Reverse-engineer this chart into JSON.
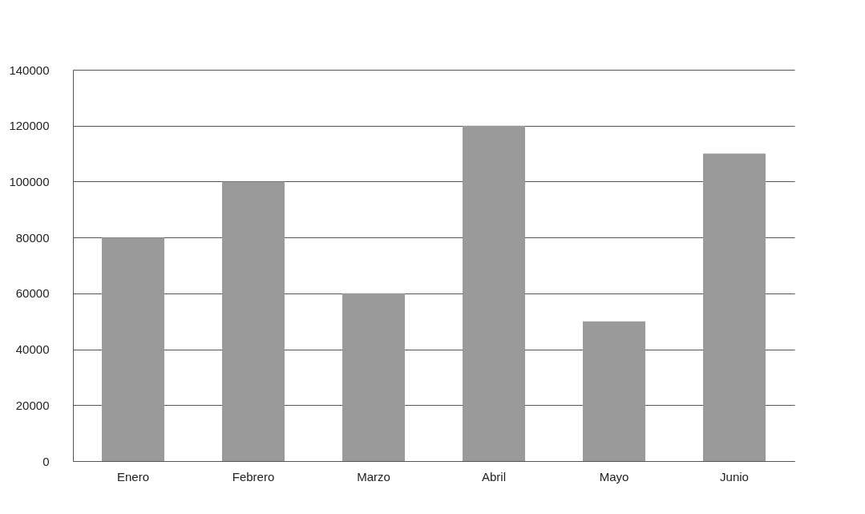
{
  "chart_data": {
    "type": "bar",
    "categories": [
      "Enero",
      "Febrero",
      "Marzo",
      "Abril",
      "Mayo",
      "Junio"
    ],
    "values": [
      80000,
      100000,
      60000,
      120000,
      50000,
      110000
    ],
    "color": "#9a9a9a",
    "ylim": [
      0,
      140000
    ],
    "yticks": [
      0,
      20000,
      40000,
      60000,
      80000,
      100000,
      120000,
      140000
    ],
    "grid": "y",
    "legend": false
  }
}
